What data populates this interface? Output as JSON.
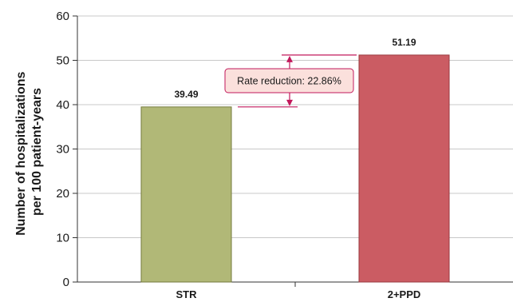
{
  "chart_data": {
    "type": "bar",
    "categories": [
      "STR",
      "2+PPD"
    ],
    "values": [
      39.49,
      51.19
    ],
    "data_labels": [
      "39.49",
      "51.19"
    ],
    "colors": [
      "#b1b877",
      "#cb5c63"
    ],
    "bar_border_colors": [
      "#757a3e",
      "#9a3a40"
    ],
    "ylabel_lines": [
      "Number of hospitalizations",
      "per 100 patient-years"
    ],
    "ylim": [
      0,
      60
    ],
    "yticks": [
      0,
      10,
      20,
      30,
      40,
      50,
      60
    ],
    "grid": true,
    "grid_color": "#c8c8c8",
    "annotation": {
      "text": "Rate reduction: 22.86%",
      "from_value": 39.49,
      "to_value": 51.19,
      "accent_color": "#c2185b",
      "box_fill": "#fbe0dc"
    }
  }
}
